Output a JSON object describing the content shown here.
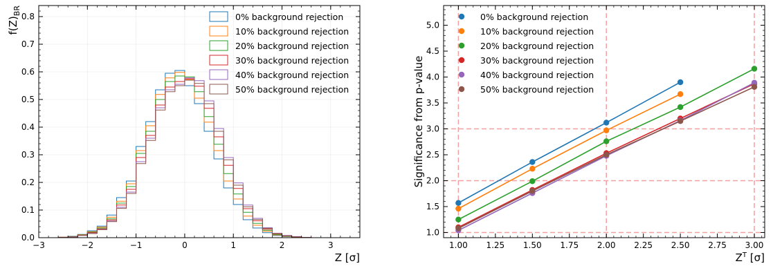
{
  "colors": [
    "#1f77b4",
    "#ff7f0e",
    "#2ca02c",
    "#d62728",
    "#9467bd",
    "#8c564b"
  ],
  "chart_data": [
    {
      "type": "histogram",
      "xlabel": "Z [σ]",
      "ylabel": "f(Z)BR",
      "xlim": [
        -3,
        3.6
      ],
      "ylim": [
        0,
        0.84
      ],
      "xticks": [
        "−3",
        "−2",
        "−1",
        "0",
        "1",
        "2",
        "3"
      ],
      "yticks": [
        "0.0",
        "0.1",
        "0.2",
        "0.3",
        "0.4",
        "0.5",
        "0.6",
        "0.7",
        "0.8"
      ],
      "grid": true,
      "legend_position": "top-right",
      "bin_width": 0.2,
      "bin_starts": [
        -3.0,
        -2.8,
        -2.6,
        -2.4,
        -2.2,
        -2.0,
        -1.8,
        -1.6,
        -1.4,
        -1.2,
        -1.0,
        -0.8,
        -0.6,
        -0.4,
        -0.2,
        0.0,
        0.2,
        0.4,
        0.6,
        0.8,
        1.0,
        1.2,
        1.4,
        1.6,
        1.8,
        2.0,
        2.2,
        2.4,
        2.6,
        2.8
      ],
      "series": [
        {
          "name": "0% background rejection",
          "values": [
            0,
            0,
            0.002,
            0.005,
            0.012,
            0.025,
            0.042,
            0.082,
            0.145,
            0.205,
            0.33,
            0.42,
            0.535,
            0.595,
            0.605,
            0.55,
            0.485,
            0.385,
            0.285,
            0.18,
            0.12,
            0.065,
            0.035,
            0.018,
            0.008,
            0.004,
            0.002,
            0.001,
            0,
            0
          ]
        },
        {
          "name": "10% background rejection",
          "values": [
            0,
            0,
            0.002,
            0.004,
            0.011,
            0.022,
            0.038,
            0.074,
            0.132,
            0.195,
            0.315,
            0.405,
            0.518,
            0.578,
            0.598,
            0.572,
            0.505,
            0.418,
            0.315,
            0.205,
            0.14,
            0.078,
            0.045,
            0.023,
            0.01,
            0.005,
            0.002,
            0.001,
            0,
            0
          ]
        },
        {
          "name": "20% background rejection",
          "values": [
            0,
            0,
            0.001,
            0.004,
            0.01,
            0.02,
            0.035,
            0.068,
            0.125,
            0.185,
            0.305,
            0.385,
            0.5,
            0.565,
            0.585,
            0.582,
            0.528,
            0.438,
            0.338,
            0.232,
            0.158,
            0.092,
            0.052,
            0.027,
            0.012,
            0.006,
            0.003,
            0.001,
            0,
            0
          ]
        },
        {
          "name": "30% background rejection",
          "values": [
            0,
            0,
            0.001,
            0.003,
            0.009,
            0.018,
            0.032,
            0.064,
            0.118,
            0.175,
            0.29,
            0.37,
            0.48,
            0.545,
            0.565,
            0.575,
            0.548,
            0.468,
            0.365,
            0.262,
            0.178,
            0.105,
            0.061,
            0.031,
            0.014,
            0.007,
            0.003,
            0.001,
            0,
            0
          ]
        },
        {
          "name": "40% background rejection",
          "values": [
            0,
            0,
            0.001,
            0.003,
            0.008,
            0.016,
            0.03,
            0.06,
            0.11,
            0.165,
            0.275,
            0.36,
            0.47,
            0.535,
            0.555,
            0.578,
            0.568,
            0.495,
            0.395,
            0.29,
            0.198,
            0.118,
            0.07,
            0.036,
            0.016,
            0.008,
            0.004,
            0.001,
            0,
            0
          ]
        },
        {
          "name": "50% background rejection",
          "values": [
            0,
            0,
            0.001,
            0.003,
            0.008,
            0.015,
            0.029,
            0.058,
            0.106,
            0.16,
            0.268,
            0.352,
            0.462,
            0.528,
            0.55,
            0.57,
            0.558,
            0.485,
            0.385,
            0.282,
            0.19,
            0.112,
            0.066,
            0.034,
            0.015,
            0.007,
            0.003,
            0.001,
            0,
            0
          ]
        }
      ]
    },
    {
      "type": "scatter",
      "xlabel": "ZT [σ]",
      "ylabel": "Significance from p-value",
      "xlim": [
        0.9,
        3.07
      ],
      "ylim": [
        0.9,
        5.38
      ],
      "xticks": [
        "1.00",
        "1.25",
        "1.50",
        "1.75",
        "2.00",
        "2.25",
        "2.50",
        "2.75",
        "3.00"
      ],
      "yticks": [
        "1.0",
        "1.5",
        "2.0",
        "2.5",
        "3.0",
        "3.5",
        "4.0",
        "4.5",
        "5.0"
      ],
      "legend_position": "top-left",
      "reference_lines": {
        "x": [
          1.0,
          2.0,
          3.0
        ],
        "y": [
          1.0,
          2.0,
          3.0
        ]
      },
      "series": [
        {
          "name": "0% background rejection",
          "x": [
            1.0,
            1.5,
            2.0,
            2.5
          ],
          "y": [
            1.57,
            2.36,
            3.12,
            3.9
          ]
        },
        {
          "name": "10% background rejection",
          "x": [
            1.0,
            1.5,
            2.0,
            2.5
          ],
          "y": [
            1.46,
            2.23,
            2.97,
            3.67
          ]
        },
        {
          "name": "20% background rejection",
          "x": [
            1.0,
            1.5,
            2.0,
            2.5,
            3.0
          ],
          "y": [
            1.25,
            1.99,
            2.76,
            3.42,
            4.16
          ]
        },
        {
          "name": "30% background rejection",
          "x": [
            1.0,
            1.5,
            2.0,
            2.5,
            3.0
          ],
          "y": [
            1.1,
            1.82,
            2.53,
            3.2,
            3.87
          ]
        },
        {
          "name": "40% background rejection",
          "x": [
            1.0,
            1.5,
            2.0,
            2.5,
            3.0
          ],
          "y": [
            1.04,
            1.76,
            2.48,
            3.16,
            3.89
          ]
        },
        {
          "name": "50% background rejection",
          "x": [
            1.0,
            1.5,
            2.0,
            2.5,
            3.0
          ],
          "y": [
            1.08,
            1.8,
            2.5,
            3.15,
            3.81
          ]
        }
      ]
    }
  ]
}
